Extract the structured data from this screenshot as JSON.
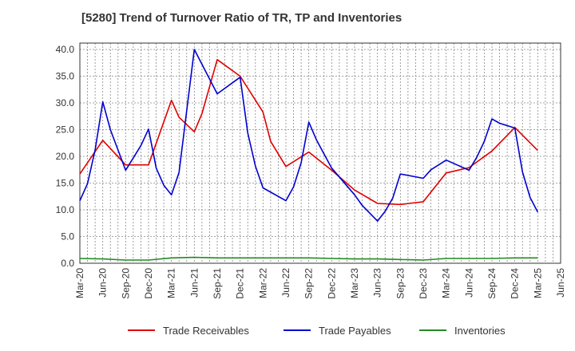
{
  "chart_data": {
    "type": "line",
    "title": "[5280]  Trend of Turnover Ratio of TR, TP and Inventories",
    "xlabel": "",
    "ylabel": "",
    "ylim": [
      0,
      40
    ],
    "y_ticks": [
      "0.0",
      "5.0",
      "10.0",
      "15.0",
      "20.0",
      "25.0",
      "30.0",
      "35.0",
      "40.0"
    ],
    "x_tick_labels": [
      "Mar-20",
      "Jun-20",
      "Sep-20",
      "Dec-20",
      "Mar-21",
      "Jun-21",
      "Sep-21",
      "Dec-21",
      "Mar-22",
      "Jun-22",
      "Sep-22",
      "Dec-22",
      "Mar-23",
      "Jun-23",
      "Sep-23",
      "Dec-23",
      "Mar-24",
      "Jun-24",
      "Sep-24",
      "Dec-24",
      "Mar-25",
      "Jun-25"
    ],
    "grid": true,
    "legend_position": "bottom",
    "series": [
      {
        "name": "Trade Receivables",
        "color": "#e00000",
        "points": [
          [
            "Mar-20",
            16.7
          ],
          [
            "Jun-20",
            23.0
          ],
          [
            "Sep-20",
            18.4
          ],
          [
            "Dec-20",
            18.4
          ],
          [
            "Mar-21",
            30.5
          ],
          [
            "Apr-21",
            27.3
          ],
          [
            "Jun-21",
            24.6
          ],
          [
            "Jul-21",
            28.0
          ],
          [
            "Sep-21",
            38.1
          ],
          [
            "Dec-21",
            35.0
          ],
          [
            "Mar-22",
            28.3
          ],
          [
            "Apr-22",
            22.8
          ],
          [
            "Jun-22",
            18.1
          ],
          [
            "Sep-22",
            20.8
          ],
          [
            "Dec-22",
            17.4
          ],
          [
            "Mar-23",
            13.7
          ],
          [
            "Jun-23",
            11.2
          ],
          [
            "Sep-23",
            11.0
          ],
          [
            "Dec-23",
            11.5
          ],
          [
            "Mar-24",
            16.9
          ],
          [
            "Jun-24",
            17.9
          ],
          [
            "Sep-24",
            21.0
          ],
          [
            "Dec-24",
            25.4
          ],
          [
            "Mar-25",
            21.1
          ]
        ]
      },
      {
        "name": "Trade Payables",
        "color": "#0000d0",
        "points": [
          [
            "Mar-20",
            11.7
          ],
          [
            "Apr-20",
            14.9
          ],
          [
            "May-20",
            21.2
          ],
          [
            "Jun-20",
            30.2
          ],
          [
            "Jul-20",
            25.0
          ],
          [
            "Sep-20",
            17.4
          ],
          [
            "Nov-20",
            22.0
          ],
          [
            "Dec-20",
            25.1
          ],
          [
            "Jan-21",
            17.8
          ],
          [
            "Feb-21",
            14.6
          ],
          [
            "Mar-21",
            12.8
          ],
          [
            "Apr-21",
            17.0
          ],
          [
            "Jun-21",
            40.0
          ],
          [
            "Sep-21",
            31.7
          ],
          [
            "Dec-21",
            34.8
          ],
          [
            "Jan-22",
            24.4
          ],
          [
            "Feb-22",
            18.2
          ],
          [
            "Mar-22",
            14.1
          ],
          [
            "Jun-22",
            11.7
          ],
          [
            "Jul-22",
            14.3
          ],
          [
            "Aug-22",
            18.8
          ],
          [
            "Sep-22",
            26.4
          ],
          [
            "Oct-22",
            23.1
          ],
          [
            "Dec-22",
            17.8
          ],
          [
            "Mar-23",
            12.8
          ],
          [
            "Apr-23",
            10.8
          ],
          [
            "Jun-23",
            7.9
          ],
          [
            "Jul-23",
            9.7
          ],
          [
            "Aug-23",
            12.2
          ],
          [
            "Sep-23",
            16.7
          ],
          [
            "Dec-23",
            15.9
          ],
          [
            "Jan-24",
            17.5
          ],
          [
            "Mar-24",
            19.3
          ],
          [
            "Jun-24",
            17.4
          ],
          [
            "Jul-24",
            19.8
          ],
          [
            "Aug-24",
            22.8
          ],
          [
            "Sep-24",
            27.0
          ],
          [
            "Oct-24",
            26.2
          ],
          [
            "Dec-24",
            25.3
          ],
          [
            "Jan-25",
            17.1
          ],
          [
            "Feb-25",
            12.3
          ],
          [
            "Mar-25",
            9.6
          ]
        ]
      },
      {
        "name": "Inventories",
        "color": "#228b22",
        "points": [
          [
            "Mar-20",
            0.9
          ],
          [
            "Jun-20",
            0.8
          ],
          [
            "Sep-20",
            0.6
          ],
          [
            "Dec-20",
            0.6
          ],
          [
            "Mar-21",
            1.0
          ],
          [
            "Jun-21",
            1.1
          ],
          [
            "Sep-21",
            1.0
          ],
          [
            "Dec-21",
            1.0
          ],
          [
            "Mar-22",
            1.0
          ],
          [
            "Jun-22",
            1.0
          ],
          [
            "Sep-22",
            1.0
          ],
          [
            "Dec-22",
            0.9
          ],
          [
            "Mar-23",
            0.8
          ],
          [
            "Jun-23",
            0.8
          ],
          [
            "Sep-23",
            0.7
          ],
          [
            "Dec-23",
            0.6
          ],
          [
            "Mar-24",
            0.9
          ],
          [
            "Jun-24",
            0.9
          ],
          [
            "Sep-24",
            0.9
          ],
          [
            "Dec-24",
            1.0
          ],
          [
            "Mar-25",
            1.0
          ]
        ]
      }
    ]
  }
}
